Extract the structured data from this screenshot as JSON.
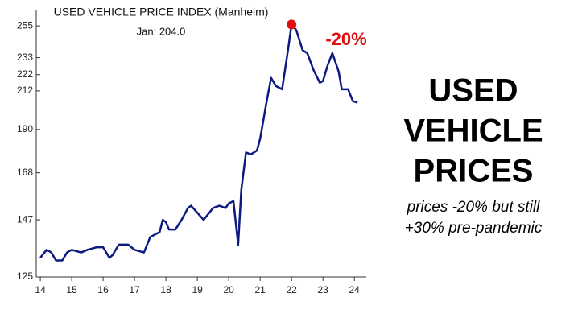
{
  "chart_data": {
    "type": "line",
    "title": "USED VEHICLE PRICE INDEX (Manheim)",
    "subtitle": "Jan: 204.0",
    "annotation": "-20%",
    "headline": [
      "USED",
      "VEHICLE",
      "PRICES"
    ],
    "caption": [
      "prices -20% but still",
      "+30% pre-pandemic"
    ],
    "log_scale": true,
    "xlim": [
      13.87,
      24.38
    ],
    "ylim": [
      125,
      267
    ],
    "xticks": [
      14,
      15,
      16,
      17,
      18,
      19,
      20,
      21,
      22,
      23,
      24
    ],
    "yticks": [
      125,
      147,
      168,
      190,
      212,
      222,
      233,
      255
    ],
    "series": [
      {
        "color": "#0d1a80",
        "x": [
          14.0,
          14.2,
          14.35,
          14.5,
          14.7,
          14.85,
          15.0,
          15.3,
          15.5,
          15.8,
          16.0,
          16.2,
          16.3,
          16.5,
          16.8,
          17.0,
          17.3,
          17.5,
          17.8,
          17.9,
          18.0,
          18.1,
          18.3,
          18.5,
          18.7,
          18.8,
          19.0,
          19.2,
          19.5,
          19.7,
          19.9,
          20.0,
          20.15,
          20.3,
          20.4,
          20.55,
          20.7,
          20.9,
          21.0,
          21.2,
          21.35,
          21.5,
          21.7,
          21.9,
          22.0,
          22.15,
          22.35,
          22.5,
          22.7,
          22.9,
          23.0,
          23.15,
          23.3,
          23.5,
          23.6,
          23.8,
          23.95,
          24.1
        ],
        "values": [
          132,
          135,
          134,
          131,
          131,
          134,
          135,
          134,
          135,
          136,
          136,
          132,
          133,
          137,
          137,
          135,
          134,
          140,
          142,
          147,
          146,
          143,
          143,
          147,
          152,
          153,
          150,
          147,
          152,
          153,
          152,
          154,
          155,
          137,
          160,
          178,
          177,
          179,
          185,
          205,
          220,
          215,
          213,
          240,
          256,
          252,
          238,
          236,
          225,
          217,
          218,
          228,
          236,
          224,
          213,
          213,
          206,
          205
        ]
      }
    ],
    "highlight": {
      "color": "#e01010",
      "x": 22.0,
      "value": 256
    }
  }
}
